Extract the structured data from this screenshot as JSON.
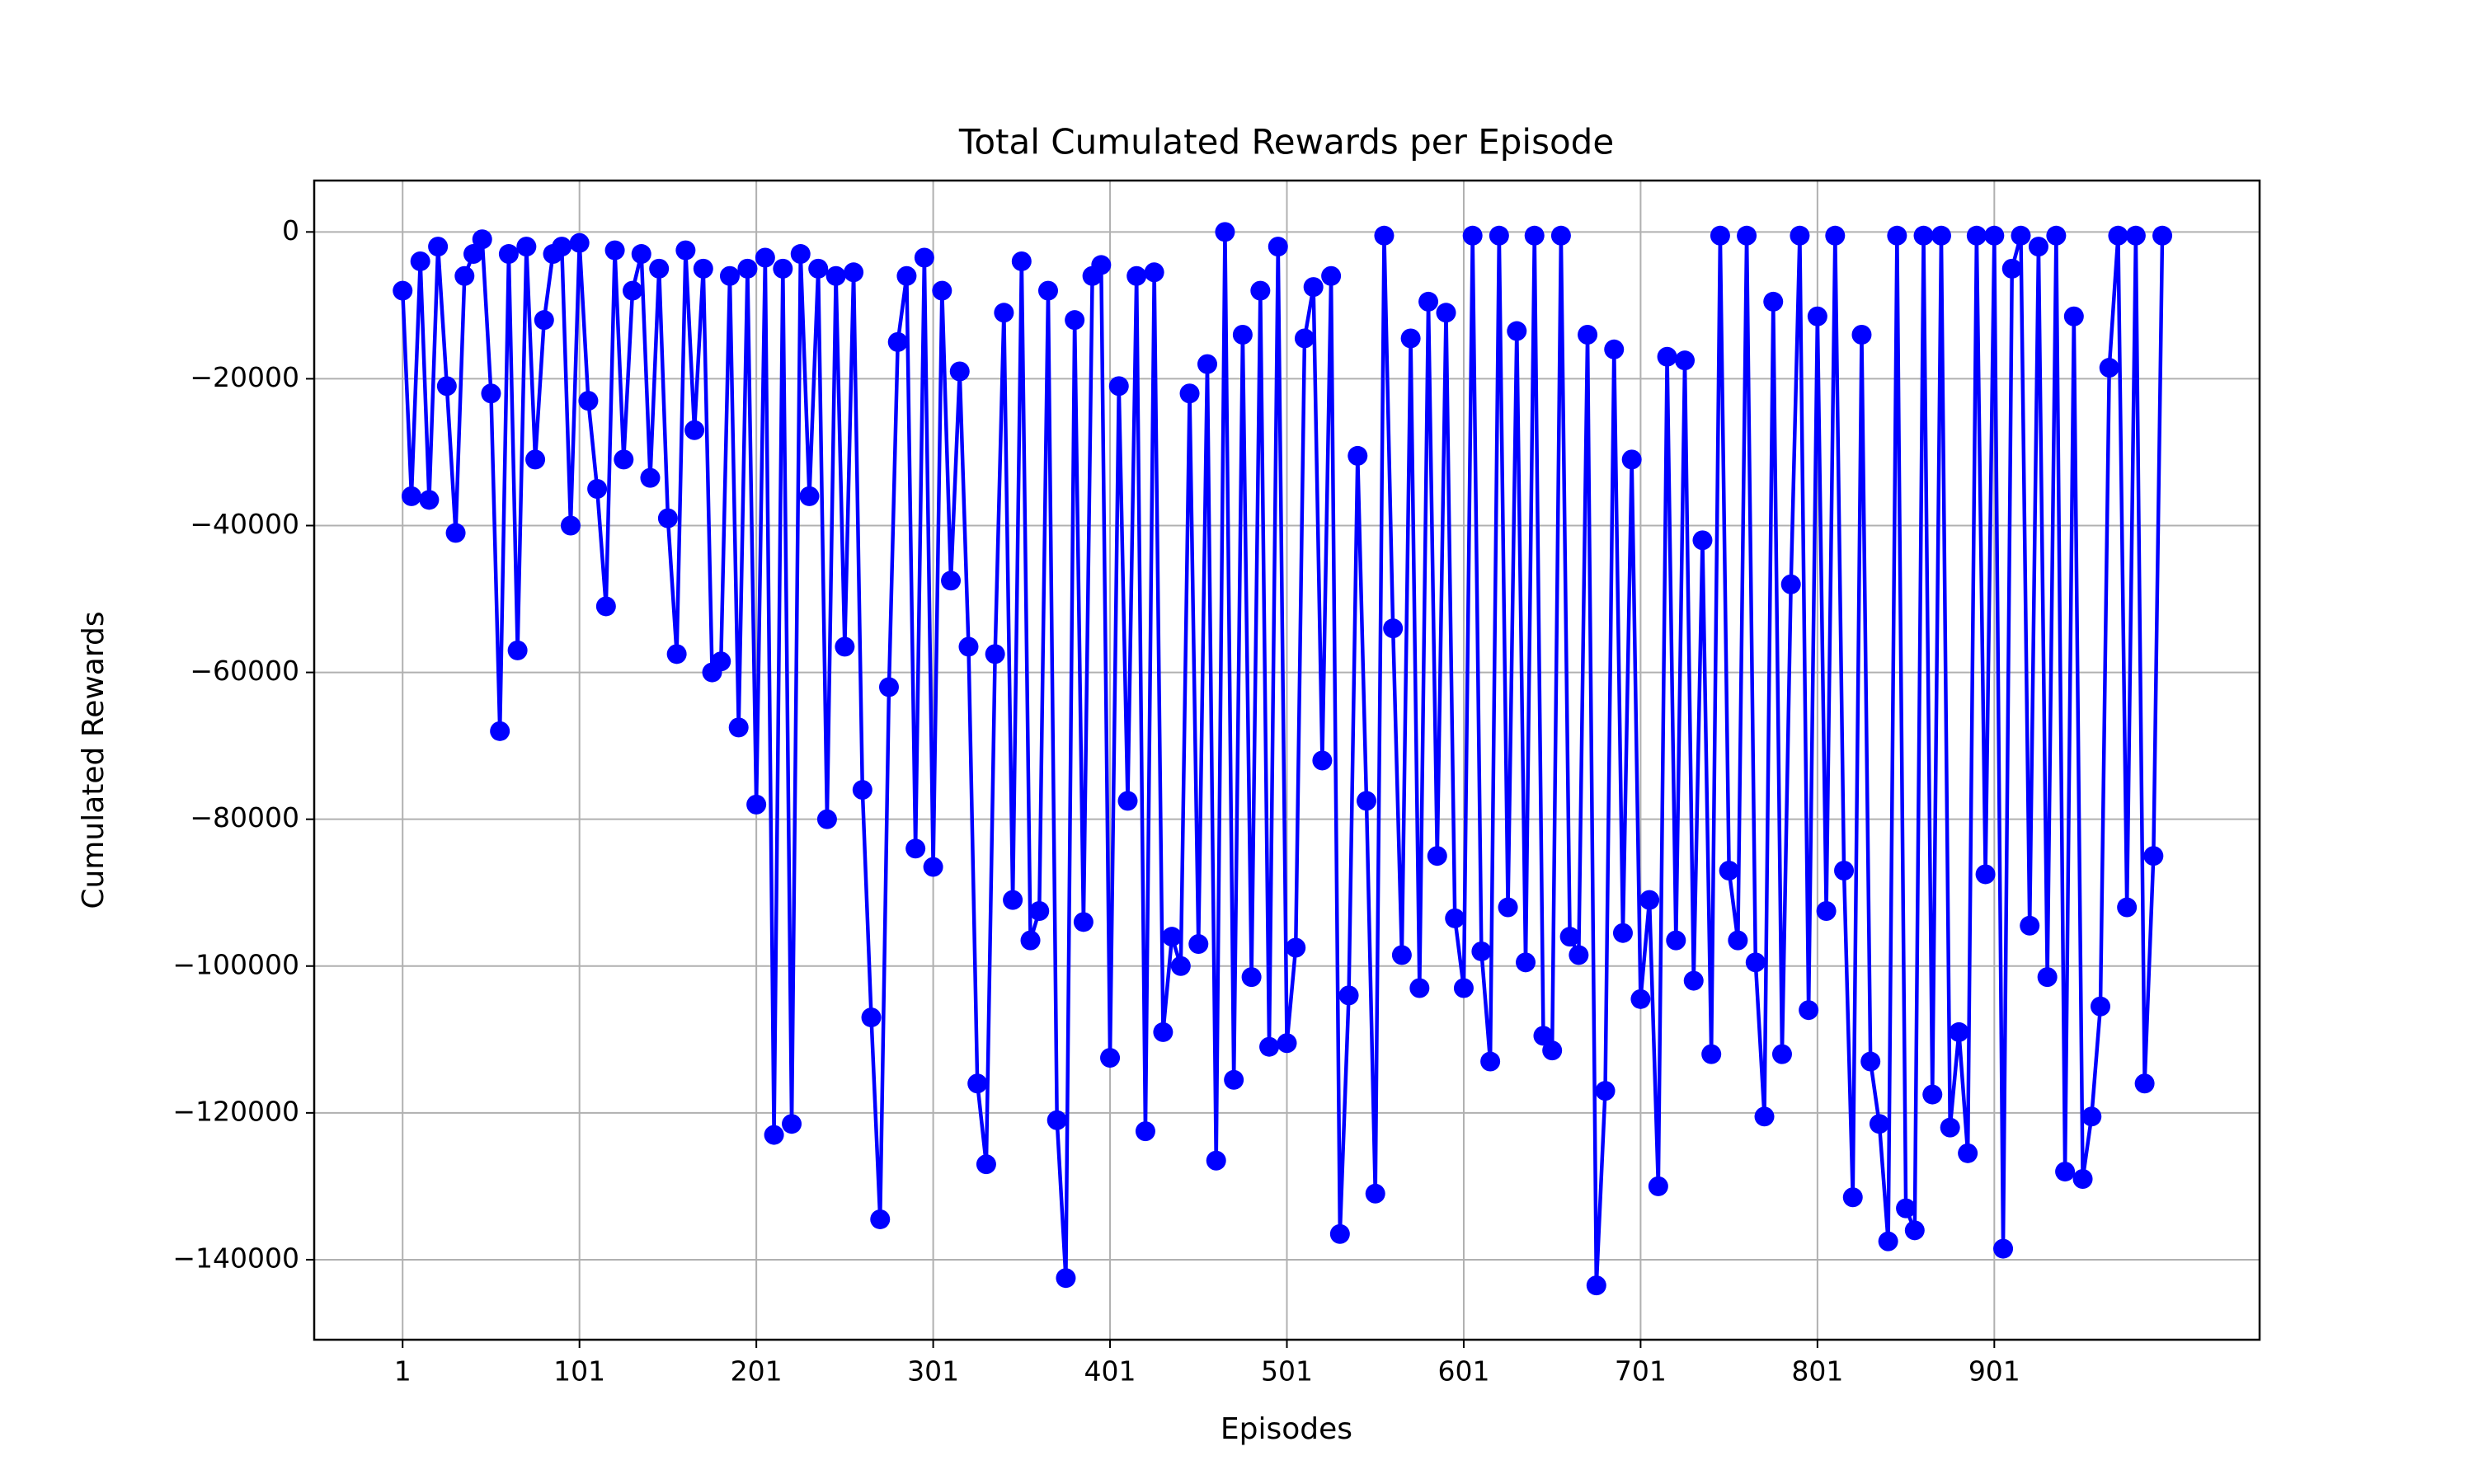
{
  "chart_data": {
    "type": "line",
    "title": "Total Cumulated Rewards per Episode",
    "xlabel": "Episodes",
    "ylabel": "Cumulated Rewards",
    "x": [
      1,
      6,
      11,
      16,
      21,
      26,
      31,
      36,
      41,
      46,
      51,
      56,
      61,
      66,
      71,
      76,
      81,
      86,
      91,
      96,
      101,
      106,
      111,
      116,
      121,
      126,
      131,
      136,
      141,
      146,
      151,
      156,
      161,
      166,
      171,
      176,
      181,
      186,
      191,
      196,
      201,
      206,
      211,
      216,
      221,
      226,
      231,
      236,
      241,
      246,
      251,
      256,
      261,
      266,
      271,
      276,
      281,
      286,
      291,
      296,
      301,
      306,
      311,
      316,
      321,
      326,
      331,
      336,
      341,
      346,
      351,
      356,
      361,
      366,
      371,
      376,
      381,
      386,
      391,
      396,
      401,
      406,
      411,
      416,
      421,
      426,
      431,
      436,
      441,
      446,
      451,
      456,
      461,
      466,
      471,
      476,
      481,
      486,
      491,
      496,
      501,
      506,
      511,
      516,
      521,
      526,
      531,
      536,
      541,
      546,
      551,
      556,
      561,
      566,
      571,
      576,
      581,
      586,
      591,
      596,
      601,
      606,
      611,
      616,
      621,
      626,
      631,
      636,
      641,
      646,
      651,
      656,
      661,
      666,
      671,
      676,
      681,
      686,
      691,
      696,
      701,
      706,
      711,
      716,
      721,
      726,
      731,
      736,
      741,
      746,
      751,
      756,
      761,
      766,
      771,
      776,
      781,
      786,
      791,
      796,
      801,
      806,
      811,
      816,
      821,
      826,
      831,
      836,
      841,
      846,
      851,
      856,
      861,
      866,
      871,
      876,
      881,
      886,
      891,
      896,
      901,
      906,
      911,
      916,
      921,
      926,
      931,
      936,
      941,
      946,
      951,
      956,
      961,
      966,
      971,
      976,
      981,
      986,
      991,
      996
    ],
    "series": [
      {
        "name": "Cumulated Rewards",
        "color": "#0000ff",
        "values": [
          -8000,
          -36000,
          -4000,
          -36500,
          -2000,
          -21000,
          -41000,
          -6000,
          -3000,
          -1000,
          -22000,
          -68000,
          -3000,
          -57000,
          -2000,
          -31000,
          -12000,
          -3000,
          -2000,
          -40000,
          -1500,
          -23000,
          -35000,
          -51000,
          -2500,
          -31000,
          -8000,
          -3000,
          -33500,
          -5000,
          -39000,
          -57500,
          -2500,
          -27000,
          -5000,
          -60000,
          -58500,
          -6000,
          -67500,
          -5000,
          -78000,
          -3500,
          -123000,
          -5000,
          -121500,
          -3000,
          -36000,
          -5000,
          -80000,
          -6000,
          -56500,
          -5500,
          -76000,
          -107000,
          -134500,
          -62000,
          -15000,
          -6000,
          -84000,
          -3500,
          -86500,
          -8000,
          -47500,
          -19000,
          -56500,
          -116000,
          -127000,
          -57500,
          -11000,
          -91000,
          -4000,
          -96500,
          -92500,
          -8000,
          -121000,
          -142500,
          -12000,
          -94000,
          -6000,
          -4500,
          -112500,
          -21000,
          -77500,
          -6000,
          -122500,
          -5500,
          -109000,
          -96000,
          -100000,
          -22000,
          -97000,
          -18000,
          -126500,
          0,
          -115500,
          -14000,
          -101500,
          -8000,
          -111000,
          -2000,
          -110500,
          -97500,
          -14500,
          -7500,
          -72000,
          -6000,
          -136500,
          -104000,
          -30500,
          -77500,
          -131000,
          -500,
          -54000,
          -98500,
          -14500,
          -103000,
          -9500,
          -85000,
          -11000,
          -93500,
          -103000,
          -500,
          -98000,
          -113000,
          -500,
          -92000,
          -13500,
          -99500,
          -500,
          -109500,
          -111500,
          -500,
          -96000,
          -98500,
          -14000,
          -143500,
          -117000,
          -16000,
          -95500,
          -31000,
          -104500,
          -91000,
          -130000,
          -17000,
          -96500,
          -17500,
          -102000,
          -42000,
          -112000,
          -500,
          -87000,
          -96500,
          -500,
          -99500,
          -120500,
          -9500,
          -112000,
          -48000,
          -500,
          -106000,
          -11500,
          -92500,
          -500,
          -87000,
          -131500,
          -14000,
          -113000,
          -121500,
          -137500,
          -500,
          -133000,
          -136000,
          -500,
          -117500,
          -500,
          -122000,
          -109000,
          -125500,
          -500,
          -87500,
          -500,
          -138500,
          -5000,
          -500,
          -94500,
          -2000,
          -101500,
          -500,
          -128000,
          -11500,
          -129000,
          -120500,
          -105500,
          -18500,
          -500,
          -92000,
          -500,
          -116000,
          -85000,
          -500
        ]
      }
    ],
    "xlim": [
      -49,
      1051
    ],
    "xticks": [
      1,
      101,
      201,
      301,
      401,
      501,
      601,
      701,
      801,
      901
    ],
    "ylim": [
      -150900,
      7000
    ],
    "yticks": [
      0,
      {
        "value": -20000,
        "label": "−20000"
      },
      {
        "value": -40000,
        "label": "−40000"
      },
      {
        "value": -60000,
        "label": "−60000"
      },
      {
        "value": -80000,
        "label": "−80000"
      },
      {
        "value": -100000,
        "label": "−100000"
      },
      {
        "value": -120000,
        "label": "−120000"
      },
      {
        "value": -140000,
        "label": "−140000"
      }
    ],
    "grid": true
  }
}
